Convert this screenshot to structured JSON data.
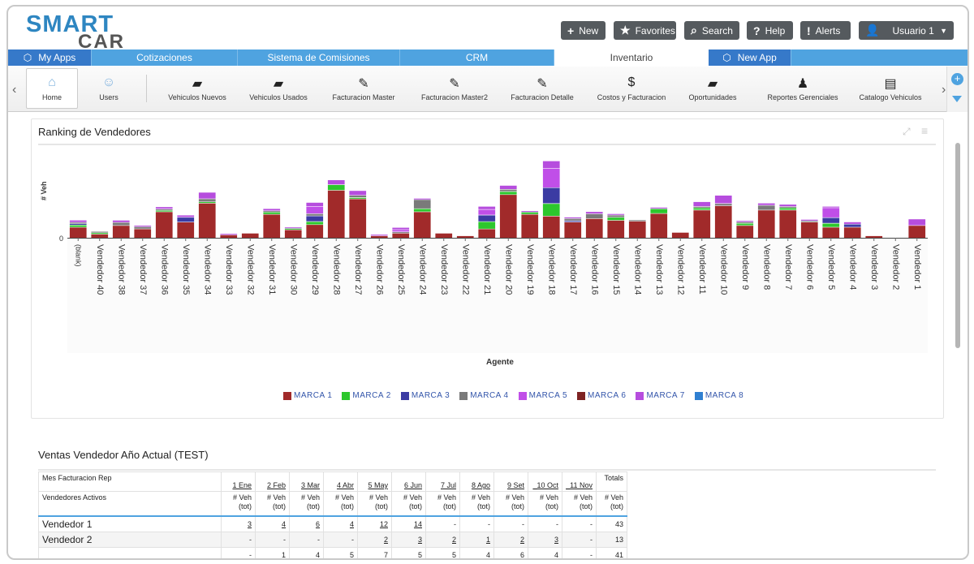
{
  "header": {
    "logo_top": "SMART",
    "logo_bottom": "CAR",
    "buttons": [
      {
        "label": "New",
        "icon": "plus-icon"
      },
      {
        "label": "Favorites",
        "icon": "star-icon"
      },
      {
        "label": "Search",
        "icon": "search-icon"
      },
      {
        "label": "Help",
        "icon": "help-icon"
      },
      {
        "label": "Alerts",
        "icon": "alert-icon"
      }
    ],
    "user": "Usuario 1"
  },
  "app_tabs": [
    "My Apps",
    "Cotizaciones",
    "Sistema de Comisiones",
    "CRM",
    "Inventario",
    "New App"
  ],
  "toolbar": [
    "Home",
    "Users",
    "Vehiculos Nuevos",
    "Vehiculos Usados",
    "Facturacion Master",
    "Facturacion Master2",
    "Facturacion Detalle",
    "Costos y Facturacion",
    "Oportunidades",
    "Reportes Gerenciales",
    "Catalogo Vehiculos"
  ],
  "panel": {
    "title": "Ranking de Vendedores"
  },
  "chart_data": {
    "type": "bar",
    "stacked": true,
    "ylabel": "# Veh",
    "xlabel": "Agente",
    "y_tick": "0",
    "categories": [
      "(blank)",
      "Vendedor 40",
      "Vendedor 38",
      "Vendedor 37",
      "Vendedor 36",
      "Vendedor 35",
      "Vendedor 34",
      "Vendedor 33",
      "Vendedor 32",
      "Vendedor 31",
      "Vendedor 30",
      "Vendedor 29",
      "Vendedor 28",
      "Vendedor 27",
      "Vendedor 26",
      "Vendedor 25",
      "Vendedor 24",
      "Vendedor 23",
      "Vendedor 22",
      "Vendedor 21",
      "Vendedor 20",
      "Vendedor 19",
      "Vendedor 18",
      "Vendedor 17",
      "Vendedor 16",
      "Vendedor 15",
      "Vendedor 14",
      "Vendedor 13",
      "Vendedor 12",
      "Vendedor 11",
      "Vendedor 10",
      "Vendedor 9",
      "Vendedor 8",
      "Vendedor 7",
      "Vendedor 6",
      "Vendedor 5",
      "Vendedor 4",
      "Vendedor 3",
      "Vendedor 2",
      "Vendedor 1"
    ],
    "series": [
      {
        "name": "MARCA 1",
        "color": "#a12a2a",
        "values": [
          12,
          4,
          14,
          10,
          30,
          18,
          40,
          3,
          5,
          27,
          9,
          15,
          55,
          45,
          2,
          5,
          30,
          5,
          2,
          10,
          50,
          27,
          25,
          18,
          22,
          20,
          19,
          28,
          6,
          32,
          37,
          14,
          32,
          32,
          18,
          12,
          12,
          2,
          0,
          14
        ]
      },
      {
        "name": "MARCA 2",
        "color": "#2dc72d",
        "values": [
          2,
          1,
          0,
          0,
          1,
          0,
          1,
          0,
          0,
          2,
          1,
          3,
          6,
          1,
          0,
          0,
          3,
          0,
          0,
          8,
          3,
          2,
          14,
          0,
          0,
          3,
          0,
          5,
          0,
          2,
          0,
          2,
          0,
          2,
          0,
          4,
          0,
          0,
          0,
          0
        ]
      },
      {
        "name": "MARCA 3",
        "color": "#3b3ba3",
        "values": [
          1,
          0,
          0,
          0,
          0,
          5,
          0,
          0,
          0,
          0,
          0,
          6,
          0,
          0,
          0,
          0,
          0,
          0,
          0,
          7,
          0,
          0,
          18,
          1,
          0,
          0,
          0,
          0,
          0,
          0,
          0,
          0,
          0,
          0,
          0,
          6,
          3,
          0,
          0,
          0
        ]
      },
      {
        "name": "MARCA 4",
        "color": "#7a7a7a",
        "values": [
          1,
          1,
          3,
          2,
          1,
          0,
          3,
          0,
          0,
          1,
          0,
          2,
          0,
          2,
          0,
          1,
          10,
          0,
          0,
          0,
          2,
          0,
          0,
          2,
          5,
          2,
          1,
          0,
          0,
          1,
          2,
          1,
          5,
          1,
          1,
          0,
          0,
          0,
          0,
          0
        ]
      },
      {
        "name": "MARCA 5",
        "color": "#c04fe8",
        "values": [
          0,
          0,
          0,
          0,
          0,
          0,
          0,
          0,
          0,
          0,
          0,
          8,
          0,
          0,
          0,
          2,
          0,
          0,
          0,
          6,
          0,
          0,
          22,
          0,
          0,
          0,
          0,
          0,
          0,
          0,
          0,
          0,
          0,
          0,
          0,
          11,
          0,
          0,
          0,
          0
        ]
      },
      {
        "name": "MARCA 6",
        "color": "#7e2323",
        "values": [
          0,
          0,
          0,
          0,
          0,
          0,
          0,
          0,
          0,
          0,
          0,
          0,
          0,
          0,
          0,
          0,
          0,
          0,
          0,
          0,
          0,
          0,
          0,
          0,
          0,
          0,
          0,
          0,
          0,
          0,
          0,
          0,
          0,
          0,
          0,
          0,
          0,
          0,
          0,
          0
        ]
      },
      {
        "name": "MARCA 7",
        "color": "#b64dde",
        "values": [
          2,
          0,
          2,
          1,
          2,
          2,
          7,
          1,
          0,
          2,
          1,
          4,
          5,
          5,
          1,
          2,
          1,
          0,
          0,
          3,
          4,
          1,
          8,
          1,
          2,
          1,
          0,
          1,
          0,
          5,
          9,
          1,
          2,
          2,
          1,
          1,
          2,
          0,
          0,
          7
        ]
      },
      {
        "name": "MARCA 8",
        "color": "#2f7fd1",
        "values": [
          0,
          0,
          0,
          0,
          0,
          0,
          0,
          0,
          0,
          0,
          0,
          0,
          0,
          0,
          0,
          0,
          0,
          0,
          0,
          0,
          0,
          0,
          0,
          0,
          0,
          0,
          0,
          0,
          0,
          0,
          0,
          0,
          0,
          0,
          0,
          0,
          0,
          0,
          0,
          0
        ]
      }
    ]
  },
  "table": {
    "title": "Ventas Vendedor Año Actual (TEST)",
    "row_header_1": "Mes Facturacion Rep",
    "row_header_2": "Vendedores Activos",
    "months": [
      "1 Ene",
      "2 Feb",
      "3 Mar",
      "4 Abr",
      "5 May",
      "6 Jun",
      "7 Jul",
      "8 Ago",
      "9 Set",
      "_10 Oct",
      "_11 Nov"
    ],
    "totals_label": "Totals",
    "veh_label": "# Veh (tot)",
    "veh_line1": "# Veh",
    "veh_line2": "(tot)",
    "rows": [
      {
        "name": "Vendedor 1",
        "values": [
          "3",
          "4",
          "6",
          "4",
          "12",
          "14",
          "-",
          "-",
          "-",
          "-",
          "-"
        ],
        "total": "43"
      },
      {
        "name": "Vendedor 2",
        "values": [
          "-",
          "-",
          "-",
          "-",
          "2",
          "3",
          "2",
          "1",
          "2",
          "3",
          "-"
        ],
        "total": "13"
      },
      {
        "name": "",
        "values": [
          "-",
          "1",
          "4",
          "5",
          "7",
          "5",
          "5",
          "4",
          "6",
          "4",
          "-"
        ],
        "total": "41"
      }
    ]
  }
}
